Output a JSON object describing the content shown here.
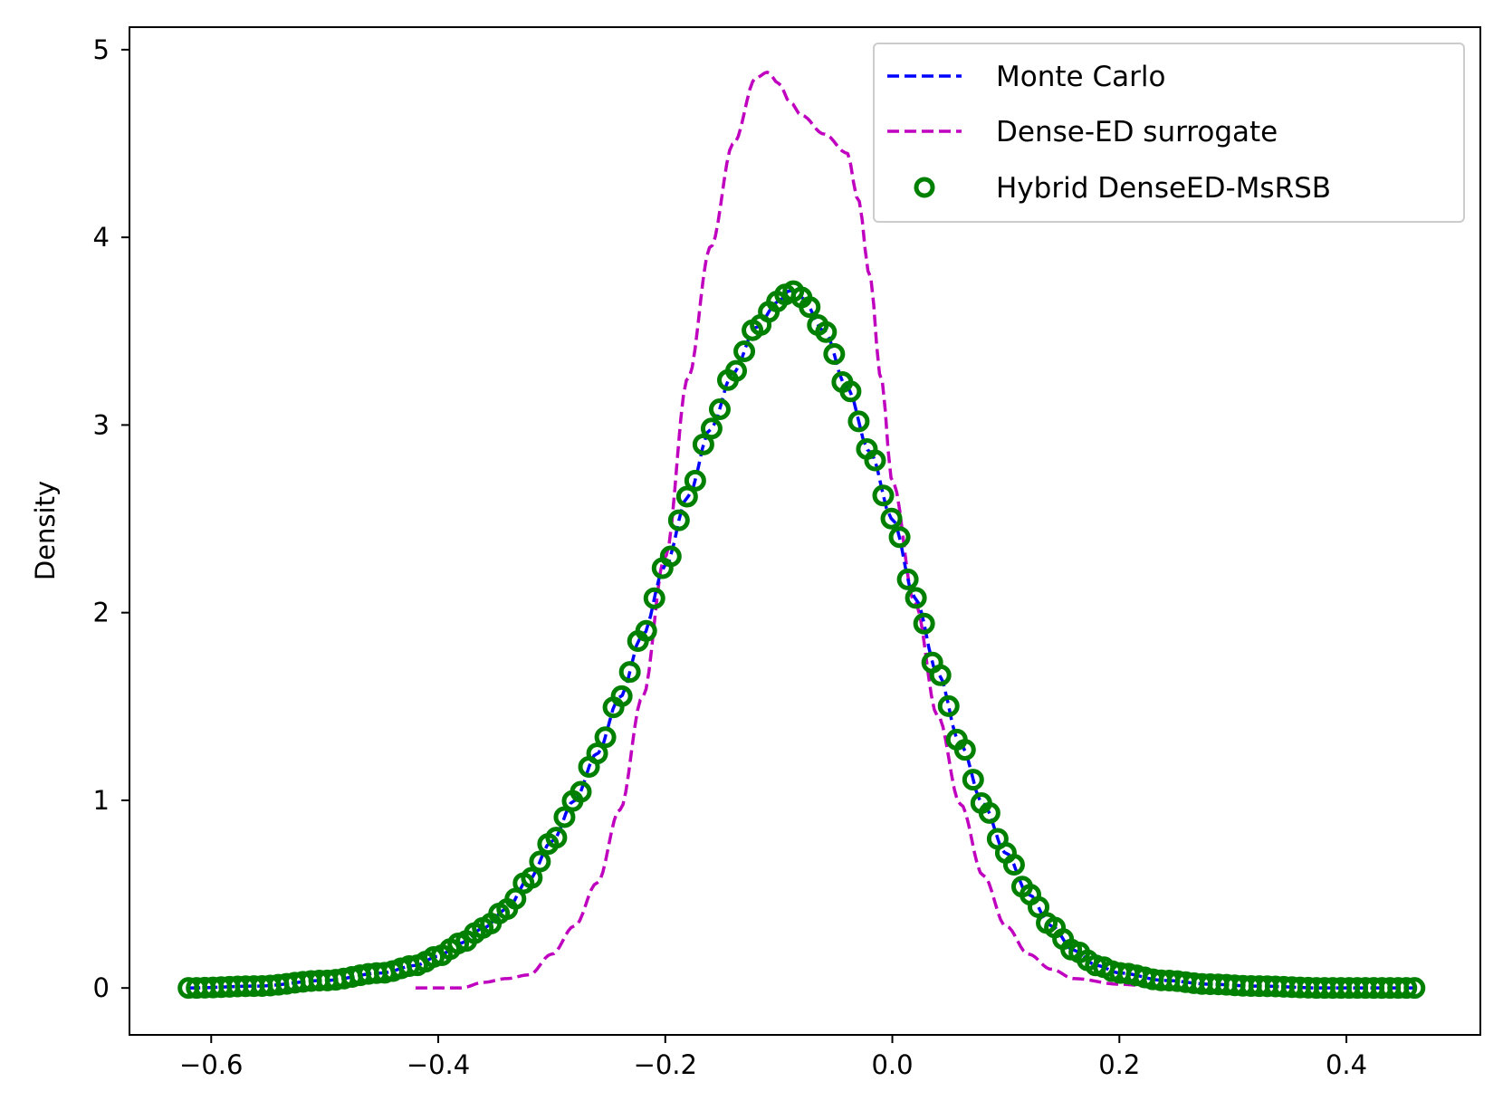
{
  "chart_data": {
    "type": "line",
    "title": "",
    "xlabel": "",
    "ylabel": "Density",
    "xlim": [
      -0.672,
      0.518
    ],
    "ylim": [
      -0.25,
      5.12
    ],
    "xticks": [
      -0.6,
      -0.4,
      -0.2,
      0.0,
      0.2,
      0.4
    ],
    "xtick_labels": [
      "−0.6",
      "−0.4",
      "−0.2",
      "0.0",
      "0.2",
      "0.4"
    ],
    "yticks": [
      0,
      1,
      2,
      3,
      4,
      5
    ],
    "ytick_labels": [
      "0",
      "1",
      "2",
      "3",
      "4",
      "5"
    ],
    "grid": false,
    "legend_position": "top-right",
    "series": [
      {
        "name": "Monte Carlo",
        "style": "dashed-line",
        "color": "#0000ff",
        "x": [
          -0.62,
          -0.56,
          -0.5,
          -0.45,
          -0.42,
          -0.4,
          -0.38,
          -0.36,
          -0.34,
          -0.32,
          -0.3,
          -0.28,
          -0.26,
          -0.24,
          -0.22,
          -0.2,
          -0.18,
          -0.16,
          -0.14,
          -0.12,
          -0.1,
          -0.09,
          -0.08,
          -0.06,
          -0.04,
          -0.02,
          0.0,
          0.02,
          0.04,
          0.06,
          0.08,
          0.1,
          0.12,
          0.14,
          0.16,
          0.18,
          0.2,
          0.24,
          0.28,
          0.32,
          0.38,
          0.46
        ],
        "y": [
          0.0,
          0.01,
          0.04,
          0.08,
          0.12,
          0.17,
          0.24,
          0.32,
          0.42,
          0.58,
          0.78,
          1.0,
          1.25,
          1.55,
          1.88,
          2.25,
          2.62,
          2.98,
          3.28,
          3.52,
          3.66,
          3.72,
          3.68,
          3.5,
          3.2,
          2.86,
          2.5,
          2.08,
          1.68,
          1.3,
          0.98,
          0.72,
          0.5,
          0.33,
          0.2,
          0.12,
          0.08,
          0.04,
          0.02,
          0.01,
          0.0,
          0.0
        ]
      },
      {
        "name": "Dense-ED surrogate",
        "style": "dashed-line",
        "color": "#bf00bf",
        "x": [
          -0.42,
          -0.38,
          -0.36,
          -0.34,
          -0.32,
          -0.3,
          -0.28,
          -0.26,
          -0.24,
          -0.22,
          -0.2,
          -0.18,
          -0.16,
          -0.14,
          -0.12,
          -0.11,
          -0.1,
          -0.09,
          -0.08,
          -0.06,
          -0.04,
          -0.03,
          -0.02,
          -0.01,
          0.0,
          0.02,
          0.04,
          0.06,
          0.08,
          0.1,
          0.12,
          0.14,
          0.16,
          0.2,
          0.24
        ],
        "y": [
          0.0,
          0.0,
          0.03,
          0.05,
          0.07,
          0.18,
          0.33,
          0.56,
          0.95,
          1.55,
          2.3,
          3.25,
          3.95,
          4.5,
          4.85,
          4.88,
          4.82,
          4.72,
          4.65,
          4.55,
          4.45,
          4.2,
          3.8,
          3.25,
          2.7,
          2.05,
          1.45,
          0.98,
          0.6,
          0.33,
          0.18,
          0.1,
          0.05,
          0.02,
          0.0
        ]
      },
      {
        "name": "Hybrid DenseED-MsRSB",
        "style": "circle-markers",
        "color": "#008000",
        "x": [
          -0.62,
          -0.56,
          -0.5,
          -0.45,
          -0.42,
          -0.4,
          -0.38,
          -0.36,
          -0.34,
          -0.32,
          -0.3,
          -0.28,
          -0.26,
          -0.24,
          -0.22,
          -0.2,
          -0.18,
          -0.16,
          -0.14,
          -0.12,
          -0.1,
          -0.09,
          -0.08,
          -0.06,
          -0.04,
          -0.02,
          0.0,
          0.02,
          0.04,
          0.06,
          0.08,
          0.1,
          0.12,
          0.14,
          0.16,
          0.18,
          0.2,
          0.24,
          0.28,
          0.32,
          0.38,
          0.46
        ],
        "y": [
          0.0,
          0.01,
          0.04,
          0.08,
          0.12,
          0.17,
          0.24,
          0.32,
          0.42,
          0.58,
          0.78,
          1.0,
          1.25,
          1.55,
          1.88,
          2.25,
          2.62,
          2.98,
          3.28,
          3.52,
          3.66,
          3.72,
          3.68,
          3.5,
          3.2,
          2.86,
          2.5,
          2.08,
          1.68,
          1.3,
          0.98,
          0.72,
          0.5,
          0.33,
          0.2,
          0.12,
          0.08,
          0.04,
          0.02,
          0.01,
          0.0,
          0.0
        ]
      }
    ]
  }
}
